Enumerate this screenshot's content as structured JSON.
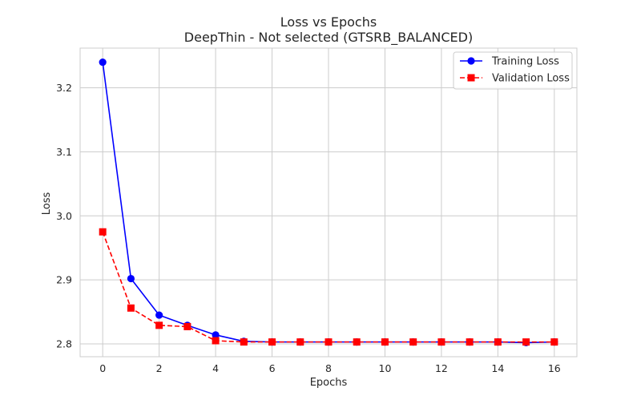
{
  "chart_data": {
    "type": "line",
    "title": "Loss vs Epochs",
    "subtitle": "DeepThin - Not selected (GTSRB_BALANCED)",
    "xlabel": "Epochs",
    "ylabel": "Loss",
    "xlim": [
      -0.8,
      16.8
    ],
    "ylim": [
      2.78,
      3.262
    ],
    "xticks": [
      0,
      2,
      4,
      6,
      8,
      10,
      12,
      14,
      16
    ],
    "yticks": [
      2.8,
      2.9,
      3.0,
      3.1,
      3.2
    ],
    "ytick_labels": [
      "2.8",
      "2.9",
      "3.0",
      "3.1",
      "3.2"
    ],
    "grid": true,
    "legend_position": "upper right",
    "x": [
      0,
      1,
      2,
      3,
      4,
      5,
      6,
      7,
      8,
      9,
      10,
      11,
      12,
      13,
      14,
      15,
      16
    ],
    "series": [
      {
        "name": "Training Loss",
        "color": "#0000ff",
        "marker": "circle",
        "linestyle": "solid",
        "values": [
          3.24,
          2.902,
          2.845,
          2.829,
          2.814,
          2.804,
          2.803,
          2.803,
          2.803,
          2.803,
          2.803,
          2.803,
          2.803,
          2.803,
          2.803,
          2.802,
          2.803
        ]
      },
      {
        "name": "Validation Loss",
        "color": "#ff0000",
        "marker": "square",
        "linestyle": "dashed",
        "values": [
          2.975,
          2.856,
          2.829,
          2.827,
          2.805,
          2.803,
          2.803,
          2.803,
          2.803,
          2.803,
          2.803,
          2.803,
          2.803,
          2.803,
          2.803,
          2.803,
          2.803
        ]
      }
    ]
  }
}
